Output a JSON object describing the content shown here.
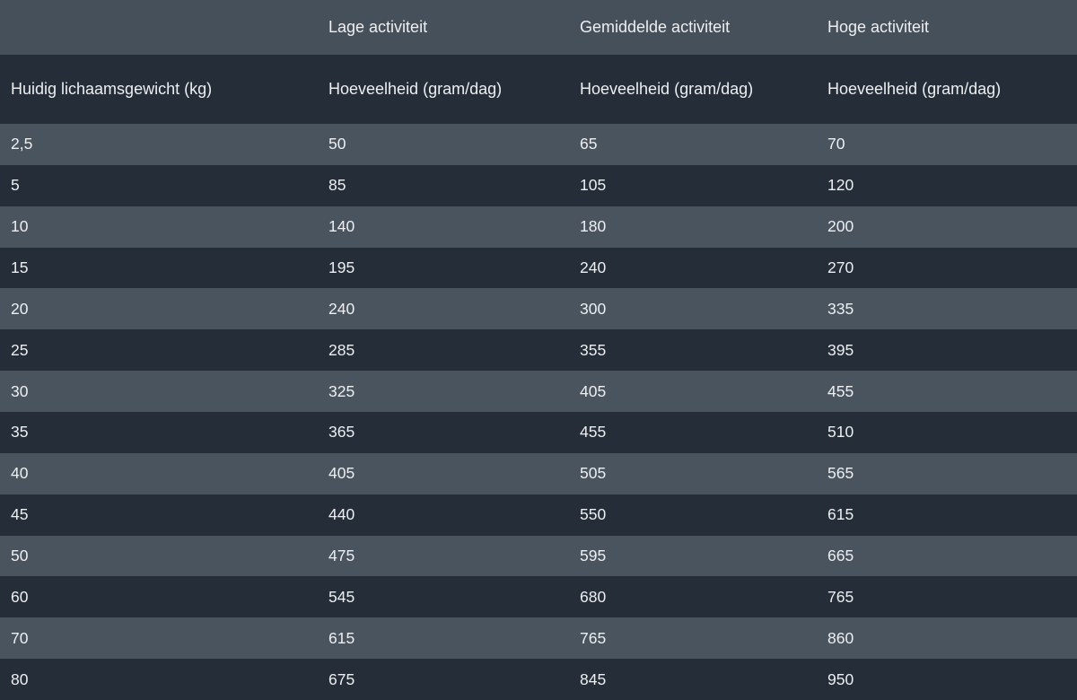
{
  "chart_data": {
    "type": "table",
    "activity_headers": [
      "",
      "Lage activiteit",
      "Gemiddelde activiteit",
      "Hoge activiteit"
    ],
    "column_headers": [
      "Huidig lichaamsgewicht (kg)",
      "Hoeveelheid (gram/dag)",
      "Hoeveelheid (gram/dag)",
      "Hoeveelheid (gram/dag)"
    ],
    "rows": [
      [
        "2,5",
        "50",
        "65",
        "70"
      ],
      [
        "5",
        "85",
        "105",
        "120"
      ],
      [
        "10",
        "140",
        "180",
        "200"
      ],
      [
        "15",
        "195",
        "240",
        "270"
      ],
      [
        "20",
        "240",
        "300",
        "335"
      ],
      [
        "25",
        "285",
        "355",
        "395"
      ],
      [
        "30",
        "325",
        "405",
        "455"
      ],
      [
        "35",
        "365",
        "455",
        "510"
      ],
      [
        "40",
        "405",
        "505",
        "565"
      ],
      [
        "45",
        "440",
        "550",
        "615"
      ],
      [
        "50",
        "475",
        "595",
        "665"
      ],
      [
        "60",
        "545",
        "680",
        "765"
      ],
      [
        "70",
        "615",
        "765",
        "860"
      ],
      [
        "80",
        "675",
        "845",
        "950"
      ]
    ]
  },
  "colors": {
    "header_top_bg": "#46505b",
    "header_sub_bg": "#242d38",
    "row_light_bg": "#4a545f",
    "row_dark_bg": "#242d38",
    "text": "#edeff1"
  }
}
